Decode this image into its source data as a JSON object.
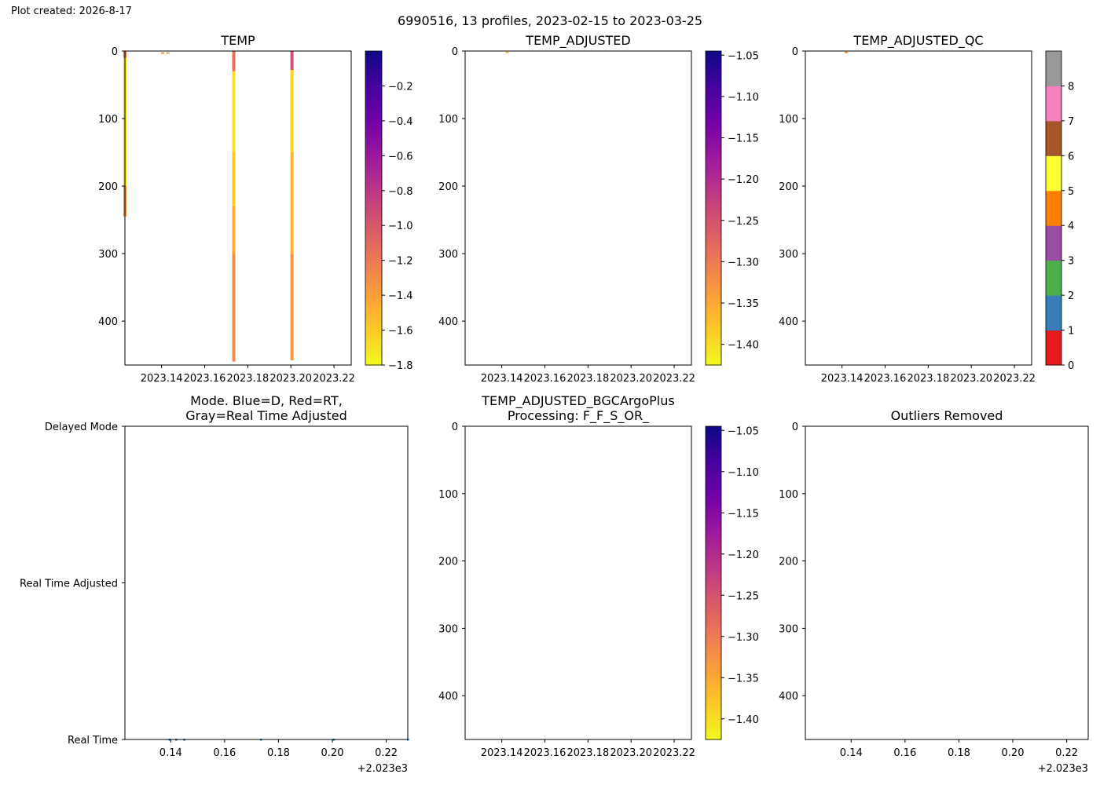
{
  "created_label": "Plot created: 2026-8-17",
  "suptitle": "6990516, 13 profiles, 2023-02-15 to 2023-03-25",
  "colors": {
    "seq": [
      "#f0f921",
      "#fdca26",
      "#fb9f3a",
      "#ed7953",
      "#d8576b",
      "#bd3786",
      "#9c179e",
      "#7201a8",
      "#46039f",
      "#0d0887"
    ],
    "qc": [
      "#e41a1c",
      "#377eb8",
      "#4daf4a",
      "#984ea3",
      "#ff7f00",
      "#ffff33",
      "#a65628",
      "#f781bf",
      "#999999"
    ],
    "mode_marker": "#1f77b4"
  },
  "chart_data": [
    {
      "id": "temp",
      "type": "heatmap",
      "title": "TEMP",
      "xlim": [
        2023.123,
        2023.228
      ],
      "ylim": [
        465,
        0
      ],
      "xticks": [
        2023.14,
        2023.16,
        2023.18,
        2023.2,
        2023.22
      ],
      "xticklabels": [
        "2023.14",
        "2023.16",
        "2023.18",
        "2023.20",
        "2023.22"
      ],
      "yticks": [
        0,
        100,
        200,
        300,
        400
      ],
      "yticklabels": [
        "0",
        "100",
        "200",
        "300",
        "400"
      ],
      "colorbar": {
        "range": [
          -1.8,
          0
        ],
        "ticks": [
          -1.8,
          -1.6,
          -1.4,
          -1.2,
          -1.0,
          -0.8,
          -0.6,
          -0.4,
          -0.2
        ],
        "ticklabels": [
          "−1.8",
          "−1.6",
          "−1.4",
          "−1.2",
          "−1.0",
          "−0.8",
          "−0.6",
          "−0.4",
          "−0.2"
        ]
      },
      "profiles": [
        {
          "x": 2023.123,
          "segments": [
            [
              0,
              10,
              -1.2
            ],
            [
              10,
              200,
              -1.75
            ],
            [
              200,
              245,
              -1.35
            ]
          ]
        },
        {
          "x": 2023.1405,
          "segments": [
            [
              2,
              4,
              -1.3
            ]
          ]
        },
        {
          "x": 2023.143,
          "segments": [
            [
              2,
              4,
              -1.35
            ]
          ]
        },
        {
          "x": 2023.1735,
          "segments": [
            [
              0,
              30,
              -1.15
            ],
            [
              30,
              150,
              -1.7
            ],
            [
              150,
              230,
              -1.6
            ],
            [
              230,
              300,
              -1.45
            ],
            [
              300,
              460,
              -1.3
            ]
          ]
        },
        {
          "x": 2023.2005,
          "segments": [
            [
              0,
              28,
              -0.95
            ],
            [
              28,
              150,
              -1.65
            ],
            [
              150,
              300,
              -1.5
            ],
            [
              300,
              458,
              -1.35
            ]
          ]
        }
      ]
    },
    {
      "id": "temp_adj",
      "type": "heatmap",
      "title": "TEMP_ADJUSTED",
      "xlim": [
        2023.123,
        2023.228
      ],
      "ylim": [
        465,
        0
      ],
      "xticks": [
        2023.14,
        2023.16,
        2023.18,
        2023.2,
        2023.22
      ],
      "xticklabels": [
        "2023.14",
        "2023.16",
        "2023.18",
        "2023.20",
        "2023.22"
      ],
      "yticks": [
        0,
        100,
        200,
        300,
        400
      ],
      "yticklabels": [
        "0",
        "100",
        "200",
        "300",
        "400"
      ],
      "colorbar": {
        "range": [
          -1.425,
          -1.045
        ],
        "ticks": [
          -1.4,
          -1.35,
          -1.3,
          -1.25,
          -1.2,
          -1.15,
          -1.1,
          -1.05
        ],
        "ticklabels": [
          "−1.40",
          "−1.35",
          "−1.30",
          "−1.25",
          "−1.20",
          "−1.15",
          "−1.10",
          "−1.05"
        ]
      },
      "profiles": [
        {
          "x": 2023.1425,
          "segments": [
            [
              1,
              3,
              -1.36
            ]
          ]
        }
      ]
    },
    {
      "id": "temp_adj_qc",
      "type": "heatmap",
      "title": "TEMP_ADJUSTED_QC",
      "xlim": [
        2023.123,
        2023.228
      ],
      "ylim": [
        465,
        0
      ],
      "xticks": [
        2023.14,
        2023.16,
        2023.18,
        2023.2,
        2023.22
      ],
      "xticklabels": [
        "2023.14",
        "2023.16",
        "2023.18",
        "2023.20",
        "2023.22"
      ],
      "yticks": [
        0,
        100,
        200,
        300,
        400
      ],
      "yticklabels": [
        "0",
        "100",
        "200",
        "300",
        "400"
      ],
      "colorbar": {
        "type": "categorical",
        "range": [
          0,
          9
        ],
        "ticks": [
          0,
          1,
          2,
          3,
          4,
          5,
          6,
          7,
          8
        ],
        "ticklabels": [
          "0",
          "1",
          "2",
          "3",
          "4",
          "5",
          "6",
          "7",
          "8"
        ]
      },
      "profiles": [
        {
          "x": 2023.142,
          "segments": [
            [
              1,
              3,
              4
            ]
          ]
        }
      ]
    },
    {
      "id": "mode",
      "type": "scatter",
      "title": [
        "Mode. Blue=D, Red=RT,",
        "Gray=Real Time Adjusted"
      ],
      "xlim": [
        2023.123,
        2023.228
      ],
      "ylim": [
        0,
        2
      ],
      "xticks": [
        2023.14,
        2023.16,
        2023.18,
        2023.2,
        2023.22
      ],
      "xticklabels": [
        "0.14",
        "0.16",
        "0.18",
        "0.20",
        "0.22"
      ],
      "offset_label": "+2.023e3",
      "yticks": [
        2,
        1,
        0
      ],
      "yticklabels": [
        "Delayed Mode",
        "Real Time Adjusted",
        "Real Time"
      ],
      "points": [
        {
          "x": 2023.1395,
          "y": 0
        },
        {
          "x": 2023.142,
          "y": 0
        },
        {
          "x": 2023.145,
          "y": 0
        },
        {
          "x": 2023.1735,
          "y": 0
        },
        {
          "x": 2023.2005,
          "y": 0
        },
        {
          "x": 2023.228,
          "y": 0
        }
      ]
    },
    {
      "id": "bgc",
      "type": "heatmap",
      "title": [
        "TEMP_ADJUSTED_BGCArgoPlus",
        "Processing: F_F_S_OR_"
      ],
      "xlim": [
        2023.123,
        2023.228
      ],
      "ylim": [
        465,
        0
      ],
      "xticks": [
        2023.14,
        2023.16,
        2023.18,
        2023.2,
        2023.22
      ],
      "xticklabels": [
        "2023.14",
        "2023.16",
        "2023.18",
        "2023.20",
        "2023.22"
      ],
      "yticks": [
        0,
        100,
        200,
        300,
        400
      ],
      "yticklabels": [
        "0",
        "100",
        "200",
        "300",
        "400"
      ],
      "colorbar": {
        "range": [
          -1.425,
          -1.045
        ],
        "ticks": [
          -1.4,
          -1.35,
          -1.3,
          -1.25,
          -1.2,
          -1.15,
          -1.1,
          -1.05
        ],
        "ticklabels": [
          "−1.40",
          "−1.35",
          "−1.30",
          "−1.25",
          "−1.20",
          "−1.15",
          "−1.10",
          "−1.05"
        ]
      },
      "profiles": []
    },
    {
      "id": "outliers",
      "type": "scatter",
      "title": "Outliers Removed",
      "xlim": [
        2023.123,
        2023.228
      ],
      "ylim": [
        465,
        0
      ],
      "xticks": [
        2023.14,
        2023.16,
        2023.18,
        2023.2,
        2023.22
      ],
      "xticklabels": [
        "0.14",
        "0.16",
        "0.18",
        "0.20",
        "0.22"
      ],
      "offset_label": "+2.023e3",
      "yticks": [
        0,
        100,
        200,
        300,
        400
      ],
      "yticklabels": [
        "0",
        "100",
        "200",
        "300",
        "400"
      ],
      "points": []
    }
  ]
}
